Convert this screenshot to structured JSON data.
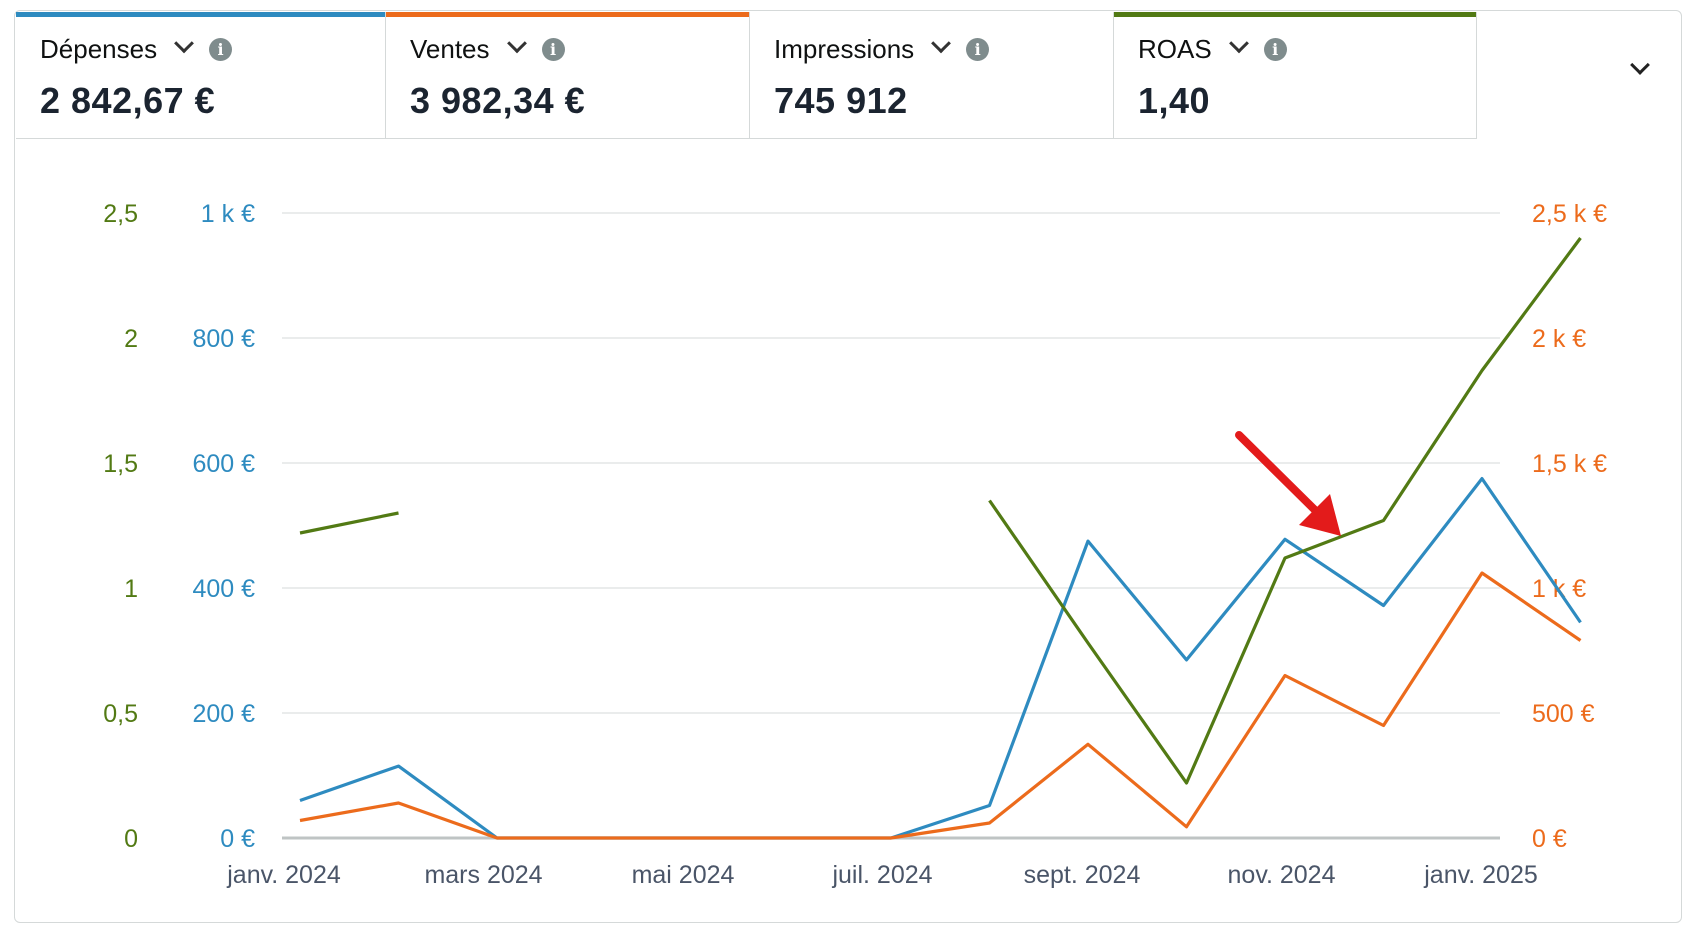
{
  "metrics": [
    {
      "label": "Dépenses",
      "value": "2 842,67 €",
      "color": "#2e8bc0"
    },
    {
      "label": "Ventes",
      "value": "3 982,34 €",
      "color": "#ec6b1c"
    },
    {
      "label": "Impressions",
      "value": "745 912",
      "color": ""
    },
    {
      "label": "ROAS",
      "value": "1,40",
      "color": "#527a14"
    }
  ],
  "icons": {
    "dropdown": "chevron-down-icon",
    "info": "info-icon",
    "collapse": "chevron-down-icon",
    "annotation": "red-arrow-icon"
  },
  "info_glyph": "i",
  "chart_data": {
    "type": "line",
    "x": [
      "2024-01",
      "2024-02",
      "2024-03",
      "2024-04",
      "2024-05",
      "2024-06",
      "2024-07",
      "2024-08",
      "2024-09",
      "2024-10",
      "2024-11",
      "2024-12",
      "2025-01",
      "2025-02"
    ],
    "x_tick_labels": [
      "janv. 2024",
      "mars 2024",
      "mai 2024",
      "juil. 2024",
      "sept. 2024",
      "nov. 2024",
      "janv. 2025"
    ],
    "y_left_roas": {
      "ticks": [
        "0",
        "0,5",
        "1",
        "1,5",
        "2",
        "2,5"
      ],
      "ylim": [
        0,
        2.5
      ],
      "color": "#527a14"
    },
    "y_left_spend": {
      "ticks": [
        "0 €",
        "200 €",
        "400 €",
        "600 €",
        "800 €",
        "1 k €"
      ],
      "ylim": [
        0,
        1000
      ],
      "color": "#2e8bc0"
    },
    "y_right_sales": {
      "ticks": [
        "0 €",
        "500 €",
        "1 k €",
        "1,5 k €",
        "2 k €",
        "2,5 k €"
      ],
      "ylim": [
        0,
        2500
      ],
      "color": "#ec6b1c"
    },
    "grid": true,
    "series": [
      {
        "name": "Dépenses",
        "axis": "spend",
        "color": "#2e8bc0",
        "values": [
          60,
          115,
          0,
          0,
          0,
          0,
          0,
          52,
          475,
          285,
          478,
          372,
          575,
          345
        ]
      },
      {
        "name": "Ventes",
        "axis": "sales",
        "color": "#ec6b1c",
        "values": [
          70,
          140,
          0,
          0,
          0,
          0,
          0,
          60,
          375,
          45,
          650,
          450,
          1060,
          790
        ]
      },
      {
        "name": "ROAS",
        "axis": "roas",
        "color": "#527a14",
        "values": [
          1.22,
          1.3,
          null,
          null,
          null,
          null,
          null,
          1.35,
          0.78,
          0.22,
          1.12,
          1.27,
          1.87,
          2.4
        ]
      }
    ],
    "annotations": [
      {
        "type": "arrow",
        "color": "#e31b1b",
        "points_to": "2024-11"
      }
    ]
  }
}
